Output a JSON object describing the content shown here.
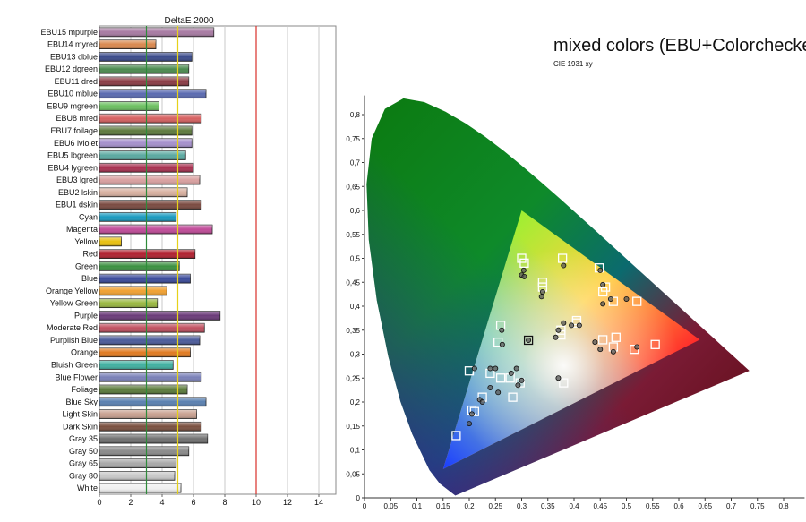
{
  "chart_data": [
    {
      "type": "bar",
      "orientation": "horizontal",
      "title": "DeltaE 2000",
      "xlim": [
        0,
        15
      ],
      "x_ticks": [
        0,
        2,
        4,
        6,
        8,
        10,
        12,
        14
      ],
      "reference_lines": [
        {
          "value": 3,
          "color": "#2e8b3a"
        },
        {
          "value": 5,
          "color": "#e6d21a"
        },
        {
          "value": 10,
          "color": "#d9302a"
        }
      ],
      "categories": [
        "EBU15 mpurple",
        "EBU14 myred",
        "EBU13 dblue",
        "EBU12 dgreen",
        "EBU11 dred",
        "EBU10 mblue",
        "EBU9 mgreen",
        "EBU8 mred",
        "EBU7 foilage",
        "EBU6 lviolet",
        "EBU5 lbgreen",
        "EBU4 lygreen",
        "EBU3 lgred",
        "EBU2 lskin",
        "EBU1 dskin",
        "Cyan",
        "Magenta",
        "Yellow",
        "Red",
        "Green",
        "Blue",
        "Orange Yellow",
        "Yellow Green",
        "Purple",
        "Moderate Red",
        "Purplish Blue",
        "Orange",
        "Bluish Green",
        "Blue Flower",
        "Foliage",
        "Blue Sky",
        "Light Skin",
        "Dark Skin",
        "Gray 35",
        "Gray 50",
        "Gray 65",
        "Gray 80",
        "White"
      ],
      "values": [
        7.3,
        3.6,
        5.9,
        5.7,
        5.7,
        6.8,
        3.8,
        6.5,
        5.9,
        5.9,
        5.5,
        6.0,
        6.4,
        5.6,
        6.5,
        4.9,
        7.2,
        1.4,
        6.1,
        5.1,
        5.8,
        4.3,
        3.7,
        7.7,
        6.7,
        6.4,
        5.8,
        4.7,
        6.5,
        5.6,
        6.8,
        6.2,
        6.5,
        6.9,
        5.7,
        4.9,
        4.8,
        5.2
      ],
      "colors": [
        "#a77aa2",
        "#d9884e",
        "#3a4a8a",
        "#4a8a4e",
        "#8a3a44",
        "#5a6ab0",
        "#6cc060",
        "#d66060",
        "#5e7a3e",
        "#a590cc",
        "#5aa8a0",
        "#a83050",
        "#d9a0a0",
        "#d8b0a0",
        "#7a4a40",
        "#1a9ac0",
        "#c04a98",
        "#e8c010",
        "#b02030",
        "#3a9040",
        "#3a4a9a",
        "#f0a030",
        "#9ab840",
        "#6a3a78",
        "#c05060",
        "#4a5a9a",
        "#e07a20",
        "#40b0a0",
        "#7a80b8",
        "#5a7a3a",
        "#5a80b0",
        "#c8a090",
        "#7a5040",
        "#707070",
        "#8a8a8a",
        "#a8a8a8",
        "#c8c8c8",
        "#f0f0f0"
      ]
    },
    {
      "type": "scatter",
      "title": "mixed colors (EBU+Colorchecker)",
      "subtitle": "CIE 1931 xy",
      "xlim": [
        0,
        0.8
      ],
      "ylim": [
        0,
        0.85
      ],
      "x_ticks": [
        "0",
        "0,05",
        "0,1",
        "0,15",
        "0,2",
        "0,25",
        "0,3",
        "0,35",
        "0,4",
        "0,45",
        "0,5",
        "0,55",
        "0,6",
        "0,65",
        "0,7",
        "0,75",
        "0,8"
      ],
      "y_ticks": [
        "0",
        "0,05",
        "0,1",
        "0,15",
        "0,2",
        "0,25",
        "0,3",
        "0,35",
        "0,4",
        "0,45",
        "0,5",
        "0,55",
        "0,6",
        "0,65",
        "0,7",
        "0,75",
        "0,8"
      ],
      "gamut_triangle": [
        [
          0.3,
          0.6
        ],
        [
          0.64,
          0.33
        ],
        [
          0.15,
          0.06
        ]
      ],
      "series": [
        {
          "marker": "square",
          "points": [
            [
              0.313,
              0.329
            ],
            [
              0.3,
              0.5
            ],
            [
              0.305,
              0.49
            ],
            [
              0.378,
              0.5
            ],
            [
              0.34,
              0.44
            ],
            [
              0.34,
              0.45
            ],
            [
              0.448,
              0.48
            ],
            [
              0.455,
              0.43
            ],
            [
              0.46,
              0.44
            ],
            [
              0.475,
              0.41
            ],
            [
              0.52,
              0.41
            ],
            [
              0.405,
              0.37
            ],
            [
              0.405,
              0.365
            ],
            [
              0.375,
              0.35
            ],
            [
              0.375,
              0.34
            ],
            [
              0.26,
              0.36
            ],
            [
              0.255,
              0.325
            ],
            [
              0.555,
              0.32
            ],
            [
              0.515,
              0.31
            ],
            [
              0.48,
              0.335
            ],
            [
              0.475,
              0.315
            ],
            [
              0.455,
              0.33
            ],
            [
              0.2,
              0.265
            ],
            [
              0.24,
              0.26
            ],
            [
              0.26,
              0.25
            ],
            [
              0.278,
              0.25
            ],
            [
              0.297,
              0.24
            ],
            [
              0.38,
              0.24
            ],
            [
              0.225,
              0.21
            ],
            [
              0.283,
              0.21
            ],
            [
              0.21,
              0.18
            ],
            [
              0.205,
              0.183
            ],
            [
              0.175,
              0.13
            ]
          ]
        },
        {
          "marker": "circle",
          "points": [
            [
              0.313,
              0.329
            ],
            [
              0.304,
              0.475
            ],
            [
              0.3,
              0.465
            ],
            [
              0.305,
              0.462
            ],
            [
              0.38,
              0.485
            ],
            [
              0.34,
              0.43
            ],
            [
              0.338,
              0.42
            ],
            [
              0.45,
              0.475
            ],
            [
              0.455,
              0.405
            ],
            [
              0.455,
              0.445
            ],
            [
              0.47,
              0.415
            ],
            [
              0.5,
              0.415
            ],
            [
              0.395,
              0.36
            ],
            [
              0.41,
              0.36
            ],
            [
              0.37,
              0.35
            ],
            [
              0.365,
              0.335
            ],
            [
              0.38,
              0.365
            ],
            [
              0.262,
              0.35
            ],
            [
              0.263,
              0.32
            ],
            [
              0.44,
              0.325
            ],
            [
              0.45,
              0.31
            ],
            [
              0.475,
              0.305
            ],
            [
              0.52,
              0.315
            ],
            [
              0.21,
              0.27
            ],
            [
              0.24,
              0.27
            ],
            [
              0.25,
              0.27
            ],
            [
              0.28,
              0.26
            ],
            [
              0.29,
              0.27
            ],
            [
              0.3,
              0.245
            ],
            [
              0.37,
              0.25
            ],
            [
              0.24,
              0.23
            ],
            [
              0.255,
              0.22
            ],
            [
              0.293,
              0.235
            ],
            [
              0.22,
              0.205
            ],
            [
              0.225,
              0.2
            ],
            [
              0.205,
              0.175
            ],
            [
              0.2,
              0.155
            ]
          ]
        }
      ]
    }
  ]
}
